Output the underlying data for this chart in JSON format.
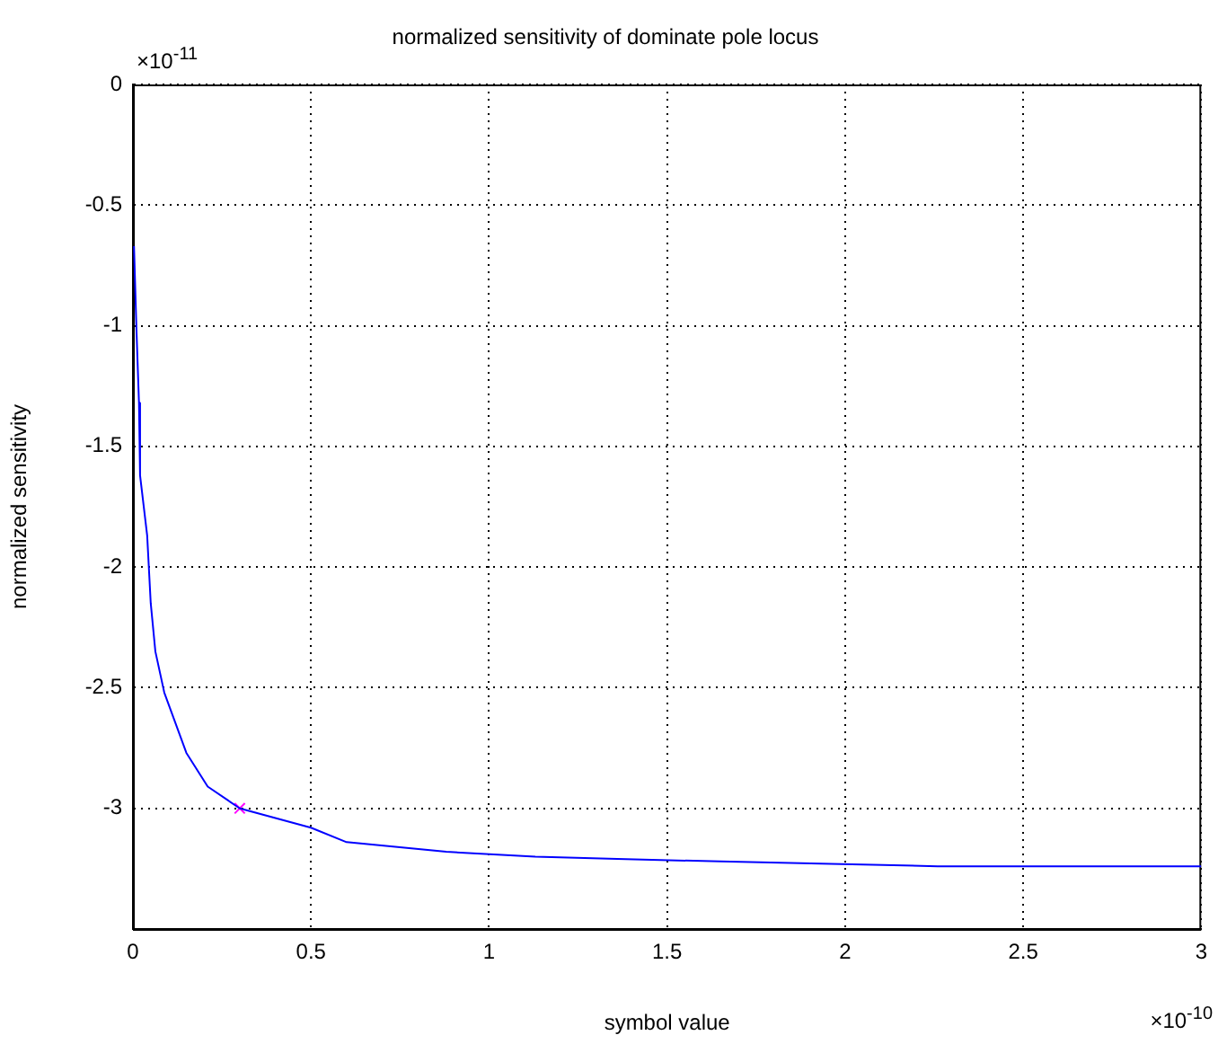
{
  "chart_data": {
    "type": "line",
    "title": "normalized sensitivity of dominate pole locus",
    "xlabel": "symbol value",
    "ylabel": "normalized sensitivity",
    "annotations": [
      "×10$^{-11}$",
      "×10$^{-10}$"
    ],
    "series": [
      {
        "type": "line",
        "color": "#0000ff",
        "x": [
          0.003,
          0.01,
          0.017,
          0.02,
          0.04,
          0.05,
          0.063,
          0.088,
          0.15,
          0.21,
          0.3,
          0.5,
          0.6,
          0.88,
          1.13,
          1.36,
          1.65,
          1.96,
          2.26,
          3.0
        ],
        "values": [
          -0.67,
          -1.02,
          -1.32,
          -1.62,
          -1.87,
          -2.15,
          -2.35,
          -2.52,
          -2.77,
          -2.91,
          -3.0,
          -3.08,
          -3.14,
          -3.18,
          -3.2,
          -3.21,
          -3.22,
          -3.23,
          -3.24,
          -3.24
        ]
      },
      {
        "type": "scatter",
        "color": "#ff00ff",
        "marker": "cross",
        "x": [
          0.3
        ],
        "values": [
          -3.0
        ]
      }
    ],
    "xlim": [
      0,
      3
    ],
    "xticks": [
      0,
      0.5,
      1,
      1.5,
      2,
      2.5,
      3
    ],
    "ylim": [
      -3.5,
      0
    ],
    "yticks": [
      0,
      -0.5,
      -1,
      -1.5,
      -2,
      -2.5,
      -3
    ],
    "grid": true,
    "marker": "none",
    "line_style": "solid",
    "legend": false
  }
}
